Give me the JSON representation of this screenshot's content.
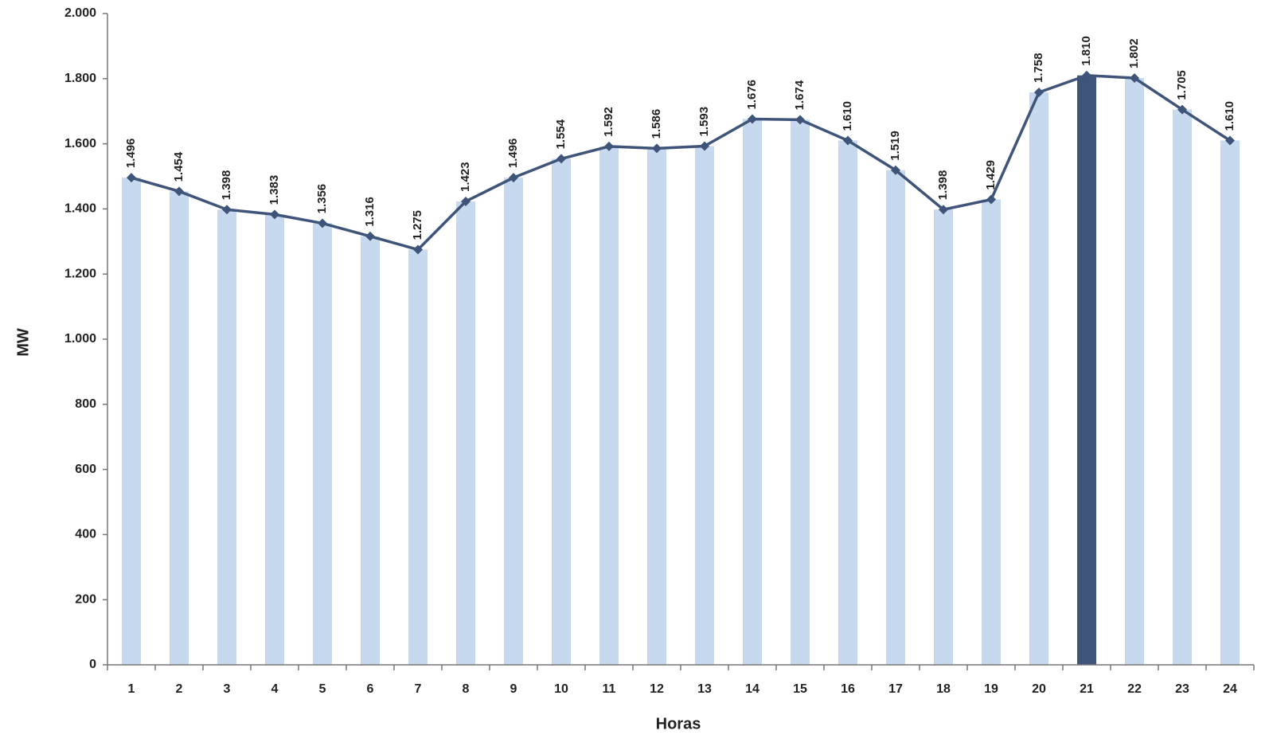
{
  "chart_data": {
    "type": "combo",
    "x_label": "Horas",
    "y_label": "MW",
    "categories": [
      "1",
      "2",
      "3",
      "4",
      "5",
      "6",
      "7",
      "8",
      "9",
      "10",
      "11",
      "12",
      "13",
      "14",
      "15",
      "16",
      "17",
      "18",
      "19",
      "20",
      "21",
      "22",
      "23",
      "24"
    ],
    "series": [
      {
        "type": "bar",
        "color": "#c6d9ee",
        "colors": [
          "#c6d9ee",
          "#c6d9ee",
          "#c6d9ee",
          "#c6d9ee",
          "#c6d9ee",
          "#c6d9ee",
          "#c6d9ee",
          "#c6d9ee",
          "#c6d9ee",
          "#c6d9ee",
          "#c6d9ee",
          "#c6d9ee",
          "#c6d9ee",
          "#c6d9ee",
          "#c6d9ee",
          "#c6d9ee",
          "#c6d9ee",
          "#c6d9ee",
          "#c6d9ee",
          "#c6d9ee",
          "#3f5479",
          "#c6d9ee",
          "#c6d9ee",
          "#c6d9ee"
        ],
        "values": [
          1496,
          1454,
          1398,
          1383,
          1356,
          1316,
          1275,
          1423,
          1496,
          1554,
          1592,
          1586,
          1593,
          1676,
          1674,
          1610,
          1519,
          1398,
          1429,
          1758,
          1810,
          1802,
          1705,
          1610
        ]
      },
      {
        "type": "line",
        "color": "#3f5479",
        "values": [
          1496,
          1454,
          1398,
          1383,
          1356,
          1316,
          1275,
          1423,
          1496,
          1554,
          1592,
          1586,
          1593,
          1676,
          1674,
          1610,
          1519,
          1398,
          1429,
          1758,
          1810,
          1802,
          1705,
          1610
        ],
        "value_labels": [
          "1.496",
          "1.454",
          "1.398",
          "1.383",
          "1.356",
          "1.316",
          "1.275",
          "1.423",
          "1.496",
          "1.554",
          "1.592",
          "1.586",
          "1.593",
          "1.676",
          "1.674",
          "1.610",
          "1.519",
          "1.398",
          "1.429",
          "1.758",
          "1.810",
          "1.802",
          "1.705",
          "1.610"
        ]
      }
    ],
    "ylim": [
      0,
      2000
    ],
    "yticks": [
      0,
      200,
      400,
      600,
      800,
      {
        "value": 1000,
        "label": "1.000"
      },
      {
        "value": 1200,
        "label": "1.200"
      },
      {
        "value": 1400,
        "label": "1.400"
      },
      {
        "value": 1600,
        "label": "1.600"
      },
      {
        "value": 1800,
        "label": "1.800"
      },
      {
        "value": 2000,
        "label": "2.000"
      }
    ],
    "grid": false
  }
}
